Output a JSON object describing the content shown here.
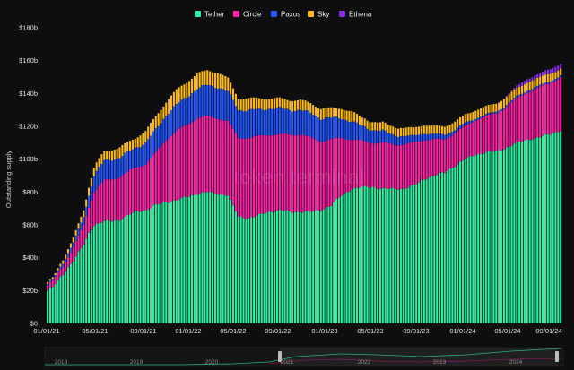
{
  "chart_data": {
    "type": "bar",
    "stacked": true,
    "ylabel": "Outstanding supply",
    "ylim": [
      0,
      180
    ],
    "y_ticks": [
      "$0",
      "$20b",
      "$40b",
      "$60b",
      "$80b",
      "$100b",
      "$120b",
      "$140b",
      "$160b",
      "$180b"
    ],
    "x_ticks": [
      "01/01/21",
      "05/01/21",
      "09/01/21",
      "01/01/22",
      "05/01/22",
      "09/01/22",
      "01/01/23",
      "05/01/23",
      "09/01/23",
      "01/01/24",
      "05/01/24",
      "09/01/24"
    ],
    "legend": {
      "placement": "top-center"
    },
    "watermark": "token terminal_",
    "navigator_labels": [
      "2018",
      "2019",
      "2020",
      "2021",
      "2022",
      "2023",
      "2024"
    ],
    "grid": false,
    "series": [
      {
        "name": "Tether",
        "color": "#2ef0a4",
        "keypoints_x": [
          0,
          2,
          6,
          10,
          14,
          16,
          18,
          22,
          28,
          34,
          38,
          42,
          46,
          50,
          54,
          58,
          62,
          66,
          70,
          74,
          78,
          82,
          86,
          90,
          94,
          98,
          102,
          106,
          110,
          114,
          118,
          122,
          126,
          130,
          134,
          138,
          142,
          146,
          150,
          154,
          158,
          162,
          166,
          170,
          174,
          178,
          182,
          186,
          190,
          194,
          198,
          200
        ],
        "keypoints_y": [
          20,
          22,
          30,
          38,
          48,
          55,
          60,
          62,
          63,
          68,
          69,
          72,
          74,
          75,
          77,
          79,
          80,
          79,
          78,
          65,
          64,
          66,
          68,
          69,
          68,
          68,
          68,
          69,
          72,
          78,
          82,
          83,
          83,
          82,
          82,
          82,
          84,
          88,
          90,
          92,
          96,
          100,
          103,
          104,
          105,
          107,
          110,
          112,
          113,
          115,
          117,
          118
        ]
      },
      {
        "name": "Circle",
        "color": "#ff1fa8",
        "keypoints_x": [
          0,
          2,
          6,
          10,
          14,
          16,
          18,
          22,
          28,
          34,
          38,
          42,
          46,
          50,
          54,
          58,
          62,
          66,
          70,
          74,
          78,
          82,
          86,
          90,
          94,
          98,
          102,
          106,
          110,
          114,
          118,
          122,
          126,
          130,
          134,
          138,
          142,
          146,
          150,
          154,
          158,
          162,
          166,
          170,
          174,
          178,
          182,
          186,
          190,
          194,
          198,
          200
        ],
        "keypoints_y": [
          3,
          4,
          5,
          8,
          12,
          16,
          20,
          25,
          26,
          27,
          28,
          32,
          38,
          42,
          44,
          46,
          46,
          46,
          45,
          48,
          49,
          48,
          47,
          46,
          47,
          47,
          45,
          42,
          40,
          35,
          30,
          28,
          27,
          28,
          27,
          27,
          26,
          24,
          22,
          20,
          20,
          20,
          21,
          22,
          23,
          25,
          27,
          29,
          30,
          31,
          32,
          33
        ]
      },
      {
        "name": "Paxos",
        "color": "#1f56ff",
        "keypoints_x": [
          0,
          2,
          6,
          10,
          14,
          16,
          18,
          22,
          28,
          34,
          38,
          42,
          46,
          50,
          54,
          58,
          62,
          66,
          70,
          74,
          78,
          82,
          86,
          90,
          94,
          98,
          102,
          106,
          110,
          114,
          118,
          122,
          126,
          130,
          134,
          138,
          142,
          146,
          150,
          154,
          158,
          162,
          166,
          170,
          174,
          178,
          182,
          186,
          190,
          194,
          198,
          200
        ],
        "keypoints_y": [
          1,
          1,
          2,
          3,
          5,
          7,
          10,
          12,
          12,
          12,
          13,
          14,
          15,
          16,
          17,
          18,
          19,
          19,
          18,
          17,
          17,
          16,
          16,
          16,
          15,
          15,
          15,
          14,
          13,
          12,
          11,
          9,
          8,
          7,
          6,
          5,
          4,
          4,
          3,
          3,
          2,
          2,
          1,
          1,
          1,
          1,
          1,
          1,
          1,
          1,
          1,
          1
        ]
      },
      {
        "name": "Sky",
        "color": "#ffbb12",
        "keypoints_x": [
          0,
          2,
          6,
          10,
          14,
          16,
          18,
          22,
          28,
          34,
          38,
          42,
          46,
          50,
          54,
          58,
          62,
          66,
          70,
          74,
          78,
          82,
          86,
          90,
          94,
          98,
          102,
          106,
          110,
          114,
          118,
          122,
          126,
          130,
          134,
          138,
          142,
          146,
          150,
          154,
          158,
          162,
          166,
          170,
          174,
          178,
          182,
          186,
          190,
          194,
          198,
          200
        ],
        "keypoints_y": [
          1,
          1,
          2,
          3,
          4,
          5,
          5,
          6,
          6,
          6,
          7,
          8,
          8,
          9,
          9,
          9,
          9,
          9,
          8,
          7,
          7,
          7,
          6,
          6,
          6,
          6,
          6,
          6,
          6,
          6,
          6,
          5,
          5,
          5,
          5,
          5,
          5,
          5,
          5,
          5,
          5,
          5,
          5,
          5,
          5,
          5,
          5,
          5,
          5,
          5,
          4,
          4
        ]
      },
      {
        "name": "Ethena",
        "color": "#8a2bf0",
        "keypoints_x": [
          0,
          176,
          180,
          184,
          188,
          192,
          196,
          200
        ],
        "keypoints_y": [
          0,
          0,
          1,
          2,
          2,
          2.5,
          3,
          3
        ]
      }
    ]
  }
}
